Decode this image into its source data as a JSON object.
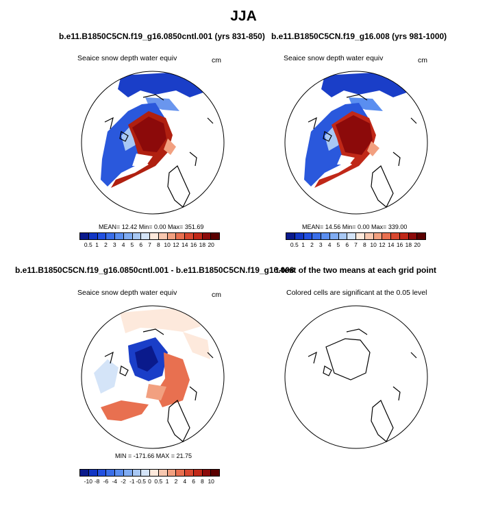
{
  "title": "JJA",
  "panels": [
    {
      "title": "b.e11.B1850C5CN.f19_g16.0850cntl.001 (yrs 831-850)",
      "variable": "Seaice snow depth water equiv",
      "units": "cm",
      "stats": "MEAN=  12.42  Min=   0.00  Max= 351.69"
    },
    {
      "title": "b.e11.B1850C5CN.f19_g16.008 (yrs 981-1000)",
      "variable": "Seaice snow depth water equiv",
      "units": "cm",
      "stats": "MEAN=  14.56  Min=   0.00  Max= 339.00"
    },
    {
      "title": "b.e11.B1850C5CN.f19_g16.0850cntl.001 - b.e11.B1850C5CN.f19_g16.008",
      "variable": "Seaice snow depth water equiv",
      "units": "cm",
      "stats": "MIN = -171.66  MAX =  21.75"
    },
    {
      "title": "t-test of the two means at each grid point",
      "variable": "Colored cells are significant at the 0.05 level",
      "units": "",
      "stats": ""
    }
  ],
  "colorbar_abs": {
    "labels": [
      "0.5",
      "1",
      "2",
      "3",
      "4",
      "5",
      "6",
      "7",
      "8",
      "10",
      "12",
      "14",
      "16",
      "18",
      "20"
    ],
    "colors": [
      "#0a1a8c",
      "#1236c4",
      "#2250e0",
      "#3a6ee8",
      "#5a8ef0",
      "#80acf2",
      "#a8c8f4",
      "#d4e4f8",
      "#fde9dc",
      "#f8c8b0",
      "#f2a080",
      "#e87050",
      "#d84830",
      "#c02818",
      "#8c0a0a",
      "#5a0000"
    ]
  },
  "colorbar_diff": {
    "labels": [
      "-10",
      "-8",
      "-6",
      "-4",
      "-2",
      "-1",
      "-0.5",
      "0",
      "0.5",
      "1",
      "2",
      "4",
      "6",
      "8",
      "10"
    ],
    "colors": [
      "#0a1a8c",
      "#1236c4",
      "#2250e0",
      "#3a6ee8",
      "#5a8ef0",
      "#80acf2",
      "#a8c8f4",
      "#d4e4f8",
      "#fde9dc",
      "#f8c8b0",
      "#f2a080",
      "#e87050",
      "#d84830",
      "#c02818",
      "#8c0a0a",
      "#5a0000"
    ]
  }
}
